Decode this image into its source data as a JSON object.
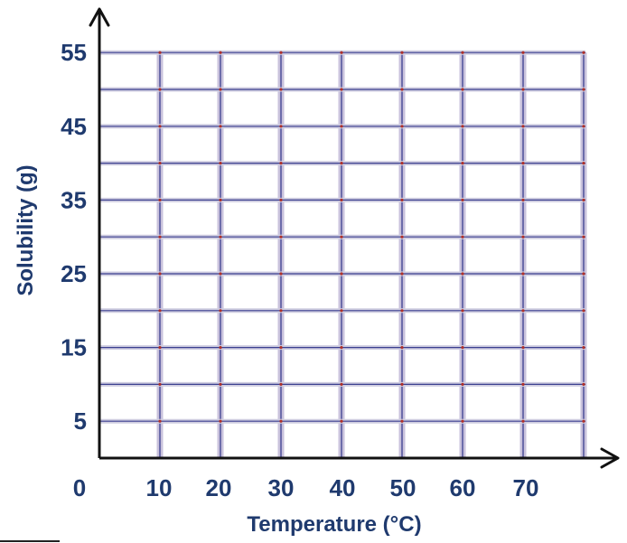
{
  "chart_data": {
    "type": "line",
    "title": "",
    "xlabel": "Temperature (°C)",
    "ylabel": "Solubility (g)",
    "xlim": [
      0,
      80
    ],
    "ylim": [
      0,
      55
    ],
    "x_ticks": [
      "0",
      "10",
      "20",
      "30",
      "40",
      "50",
      "60",
      "70"
    ],
    "y_ticks": [
      "5",
      "15",
      "25",
      "35",
      "45",
      "55"
    ],
    "grid": true,
    "series": []
  }
}
